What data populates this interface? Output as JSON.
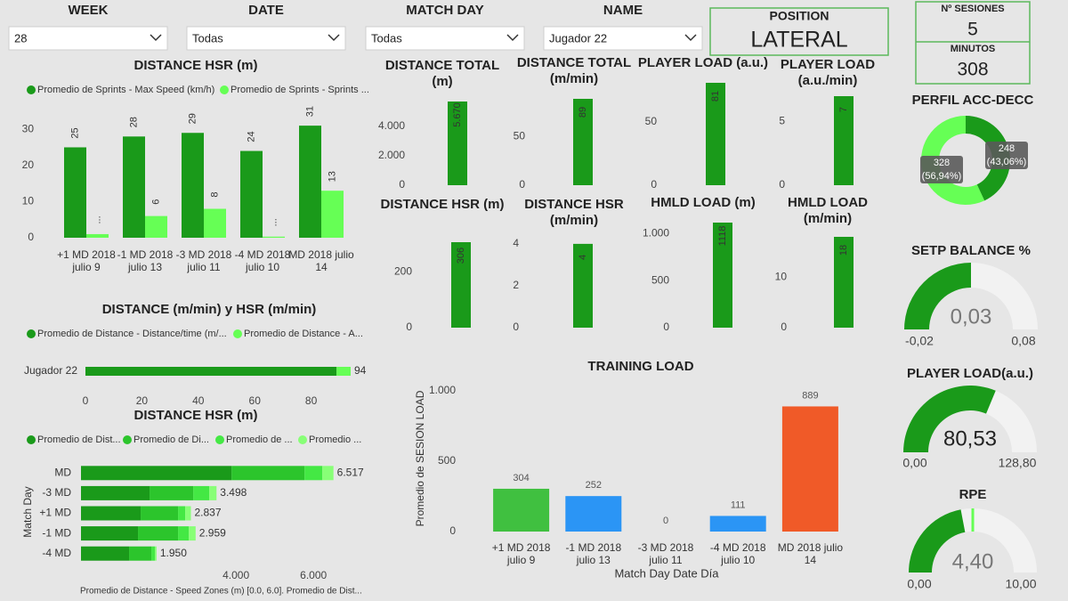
{
  "filters": [
    {
      "label": "WEEK",
      "value": "28"
    },
    {
      "label": "DATE",
      "value": "Todas"
    },
    {
      "label": "MATCH DAY",
      "value": "Todas"
    },
    {
      "label": "NAME",
      "value": "Jugador 22"
    }
  ],
  "position": {
    "label": "POSITION",
    "value": "LATERAL"
  },
  "sessions": [
    {
      "label": "Nº SESIONES",
      "value": 5
    },
    {
      "label": "MINUTOS",
      "value": 308
    }
  ],
  "chart_data": [
    {
      "type": "bar",
      "title": "DISTANCE HSR (m)",
      "categories": [
        "+1 MD 2018 julio 9",
        "-1 MD 2018 julio 13",
        "-3 MD 2018 julio 11",
        "-4 MD 2018 julio 10",
        "MD 2018 julio 14"
      ],
      "series": [
        {
          "name": "Promedio de Sprints - Max Speed (km/h)",
          "color": "#1a9a1a",
          "values": [
            25,
            28,
            29,
            24,
            31
          ]
        },
        {
          "name": "Promedio de Sprints - Sprints ...",
          "color": "#66ff55",
          "values": [
            1,
            6,
            8,
            0.3,
            13
          ],
          "value_labels": [
            "...",
            "6",
            "8",
            "...",
            "13"
          ]
        }
      ],
      "ylim": [
        0,
        33
      ],
      "yticks": [
        0,
        10,
        20,
        30
      ]
    },
    {
      "type": "bar",
      "title": "DISTANCE TOTAL (m)",
      "values": [
        5670
      ],
      "value_labels": [
        "5.670"
      ],
      "color": "#1a9a1a",
      "ylim": [
        0,
        5670
      ],
      "yticks": [
        0,
        {
          "value": 2000,
          "label": "2.000"
        },
        {
          "value": 4000,
          "label": "4.000"
        }
      ]
    },
    {
      "type": "bar",
      "title": "DISTANCE TOTAL (m/min)",
      "values": [
        89
      ],
      "color": "#1a9a1a",
      "ylim": [
        0,
        89
      ],
      "yticks": [
        0,
        50
      ]
    },
    {
      "type": "bar",
      "title": "PLAYER LOAD (a.u.)",
      "values": [
        81
      ],
      "color": "#1a9a1a",
      "ylim": [
        0,
        81
      ],
      "yticks": [
        0,
        50
      ]
    },
    {
      "type": "bar",
      "title": "PLAYER LOAD (a.u./min)",
      "values": [
        7
      ],
      "color": "#1a9a1a",
      "ylim": [
        0,
        7
      ],
      "yticks": [
        0,
        5
      ]
    },
    {
      "type": "bar",
      "title": "DISTANCE HSR (m)",
      "values": [
        306
      ],
      "color": "#1a9a1a",
      "ylim": [
        0,
        306
      ],
      "yticks": [
        0,
        200
      ]
    },
    {
      "type": "bar",
      "title": "DISTANCE HSR (m/min)",
      "values": [
        4
      ],
      "color": "#1a9a1a",
      "ylim": [
        0,
        4.25
      ],
      "yticks": [
        0,
        2,
        4
      ]
    },
    {
      "type": "bar",
      "title": "HMLD LOAD (m)",
      "values": [
        1118
      ],
      "value_labels": [
        "1118"
      ],
      "color": "#1a9a1a",
      "ylim": [
        0,
        1118
      ],
      "yticks": [
        0,
        500,
        {
          "value": 1000,
          "label": "1.000"
        }
      ]
    },
    {
      "type": "bar",
      "title": "HMLD LOAD (m/min)",
      "values": [
        18
      ],
      "color": "#1a9a1a",
      "ylim": [
        0,
        18
      ],
      "yticks": [
        0,
        10
      ]
    },
    {
      "type": "hbar",
      "title": "DISTANCE (m/min) y HSR (m/min)",
      "categories": [
        "Jugador 22"
      ],
      "series": [
        {
          "name": "Promedio de Distance - Distance/time (m/...",
          "color": "#1a9a1a",
          "values": [
            89
          ]
        },
        {
          "name": "Promedio de Distance - A...",
          "color": "#66ff55",
          "values": [
            5
          ]
        }
      ],
      "total_labels": [
        "94"
      ],
      "xlim": [
        0,
        94
      ],
      "xticks": [
        0,
        20,
        40,
        60,
        80
      ]
    },
    {
      "type": "hbar",
      "title": "DISTANCE HSR (m)",
      "categories": [
        "MD",
        "-3 MD",
        "+1 MD",
        "-1 MD",
        "-4 MD"
      ],
      "series": [
        {
          "name": "Promedio de Dist...",
          "color": "#1a9a1a",
          "values": [
            3885,
            1770,
            1540,
            1471,
            1241
          ]
        },
        {
          "name": "Promedio de Di...",
          "color": "#2cc52c",
          "values": [
            1885,
            1127,
            966,
            1035,
            575
          ]
        },
        {
          "name": "Promedio de ...",
          "color": "#44e844",
          "values": [
            460,
            413,
            184,
            276,
            92
          ]
        },
        {
          "name": "Promedio ...",
          "color": "#88ff77",
          "values": [
            287,
            188,
            147,
            177,
            42
          ]
        }
      ],
      "total_labels": [
        "6.517",
        "3.498",
        "2.837",
        "2.959",
        "1.950"
      ],
      "xlim": [
        0,
        6800
      ],
      "xticks": [
        {
          "value": 4000,
          "label": "4.000"
        },
        {
          "value": 6000,
          "label": "6.000"
        }
      ],
      "y_label": "Match Day",
      "x_label": "Promedio de Distance - Speed Zones (m) [0.0, 6.0]. Promedio de Dist..."
    },
    {
      "type": "bar",
      "title": "TRAINING LOAD",
      "categories": [
        "+1 MD 2018 julio 9",
        "-1 MD 2018 julio 13",
        "-3 MD 2018 julio 11",
        "-4 MD 2018 julio 10",
        "MD 2018 julio 14"
      ],
      "values": [
        304,
        252,
        0,
        111,
        889
      ],
      "colors": [
        "#40c040",
        "#2b95f5",
        "#2b95f5",
        "#2b95f5",
        "#f05a28"
      ],
      "ylim": [
        0,
        1050
      ],
      "yticks": [
        0,
        500,
        {
          "value": 1000,
          "label": "1.000"
        }
      ],
      "x_label": "Match Day Date Día",
      "y_label": "Promedio de SESION LOAD"
    },
    {
      "type": "donut",
      "title": "PERFIL ACC-DECC",
      "values": [
        248,
        328
      ],
      "percent_labels": [
        "(43,06%)",
        "(56,94%)"
      ],
      "colors": [
        "#1a9a1a",
        "#66ff55"
      ]
    },
    {
      "type": "gauge",
      "title": "SETP BALANCE %",
      "values": [
        0.03
      ],
      "value_labels": [
        "0,03"
      ],
      "color": "#1a9a1a",
      "ylim": [
        -0.02,
        0.08
      ],
      "yticks": [
        {
          "value": -0.02,
          "label": "-0,02"
        },
        {
          "value": 0.08,
          "label": "0,08"
        }
      ]
    },
    {
      "type": "gauge",
      "title": "PLAYER LOAD(a.u.)",
      "values": [
        80.53
      ],
      "value_labels": [
        "80,53"
      ],
      "color": "#1a9a1a",
      "ylim": [
        0,
        128.8
      ],
      "yticks": [
        {
          "value": 0,
          "label": "0,00"
        },
        {
          "value": 128.8,
          "label": "128,80"
        }
      ]
    },
    {
      "type": "gauge",
      "title": "RPE",
      "values": [
        4.4
      ],
      "value_labels": [
        "4,40"
      ],
      "color": "#1a9a1a",
      "target": 5,
      "target_color": "#66ff55",
      "ylim": [
        0,
        10
      ],
      "yticks": [
        {
          "value": 0,
          "label": "0,00"
        },
        {
          "value": 10,
          "label": "10,00"
        }
      ]
    }
  ]
}
